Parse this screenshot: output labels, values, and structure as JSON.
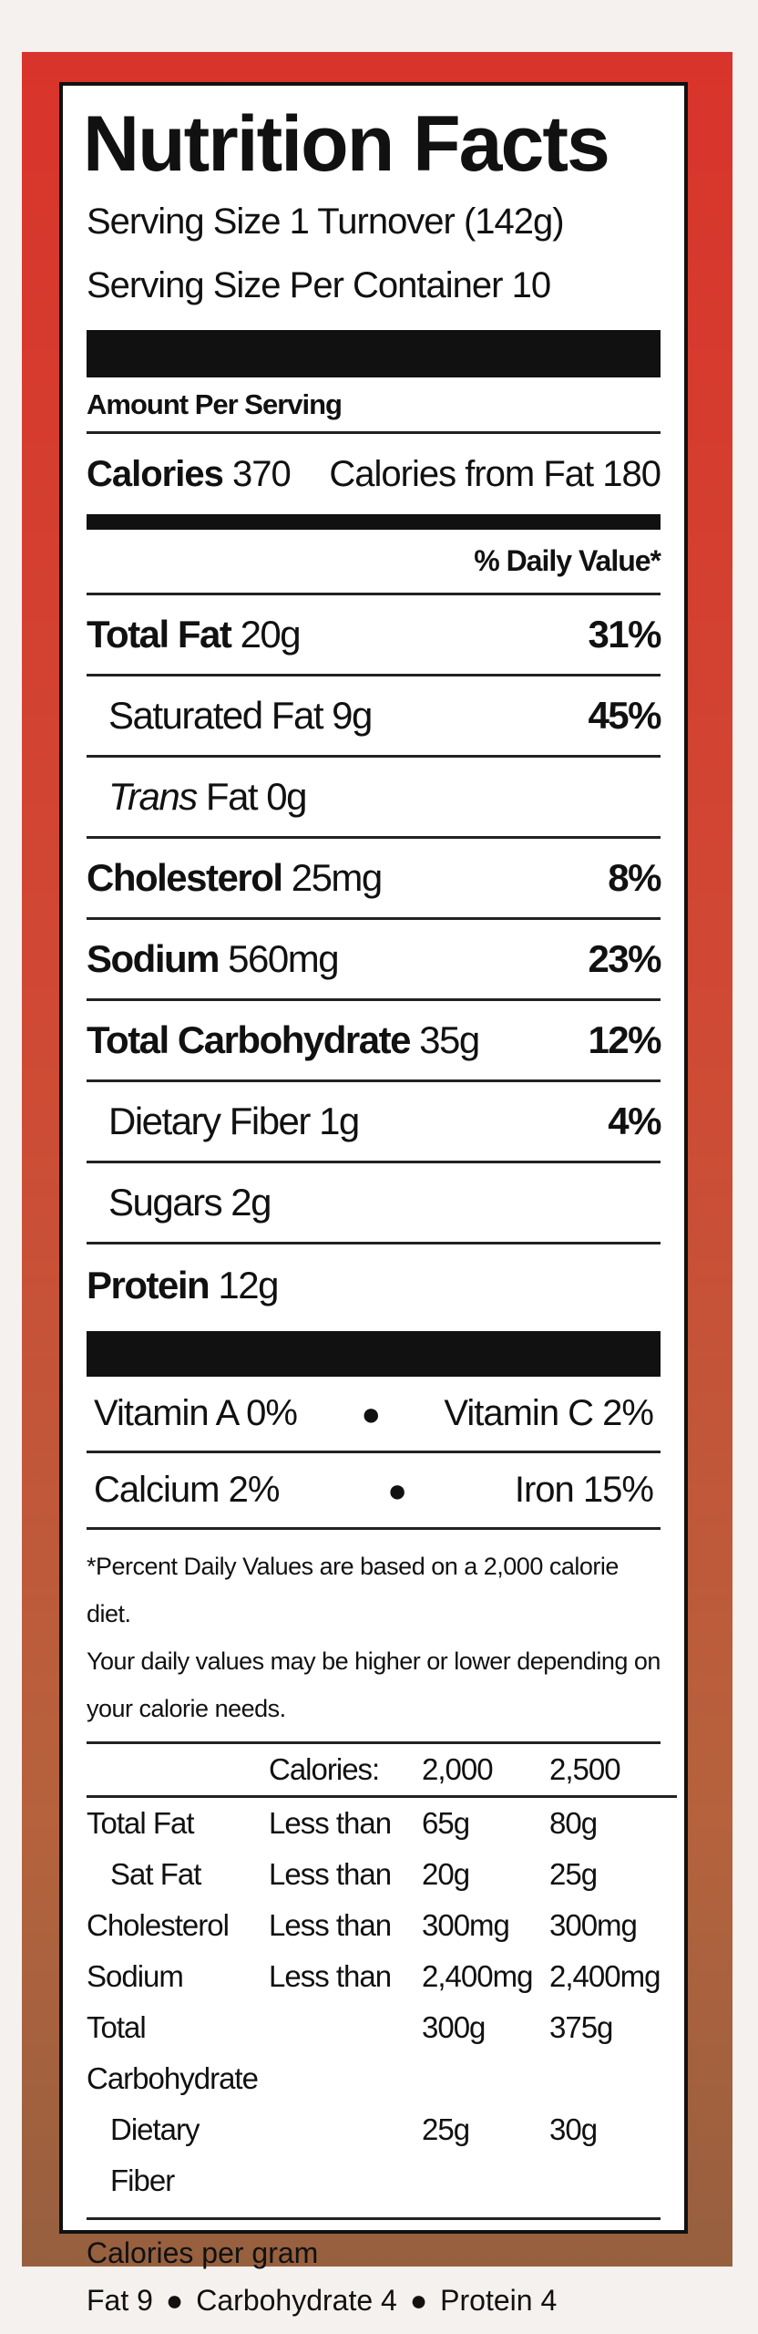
{
  "label": {
    "title": "Nutrition Facts",
    "serving_size": "Serving Size 1 Turnover (142g)",
    "servings_per_container": "Serving Size Per Container 10",
    "amount_per_serving": "Amount Per Serving",
    "calories": {
      "label": "Calories",
      "value": "370"
    },
    "calories_from_fat": "Calories from Fat 180",
    "daily_value_header": "% Daily Value*",
    "nutrients": [
      {
        "name": "Total Fat",
        "amount": "20g",
        "daily_value": "31%"
      },
      {
        "name": "Saturated Fat",
        "amount": "9g",
        "daily_value": "45%"
      },
      {
        "name_italic": "Trans",
        "name": "Fat",
        "amount": "0g"
      },
      {
        "name": "Cholesterol",
        "amount": "25mg",
        "daily_value": "8%"
      },
      {
        "name": "Sodium",
        "amount": "560mg",
        "daily_value": "23%"
      },
      {
        "name": "Total Carbohydrate",
        "amount": "35g",
        "daily_value": "12%"
      },
      {
        "name": "Dietary Fiber",
        "amount": "1g",
        "daily_value": "4%"
      },
      {
        "name": "Sugars",
        "amount": "2g"
      },
      {
        "name": "Protein",
        "amount": "12g"
      }
    ],
    "vitamins": [
      [
        "Vitamin A 0%",
        "Vitamin C 2%"
      ],
      [
        "Calcium 2%",
        "Iron 15%"
      ]
    ],
    "footnote": [
      "*Percent Daily Values are based on a 2,000 calorie diet.",
      "Your daily values may be higher or lower depending on",
      "your calorie needs."
    ],
    "reference_table": {
      "header": [
        "Calories:",
        "2,000",
        "2,500"
      ],
      "rows": [
        {
          "nutrient": "Total Fat",
          "limit": "Less than",
          "values": [
            "65g",
            "80g"
          ]
        },
        {
          "nutrient": "Sat Fat",
          "limit": "Less than",
          "values": [
            "20g",
            "25g"
          ]
        },
        {
          "nutrient": "Cholesterol",
          "limit": "Less than",
          "values": [
            "300mg",
            "300mg"
          ]
        },
        {
          "nutrient": "Sodium",
          "limit": "Less than",
          "values": [
            "2,400mg",
            "2,400mg"
          ]
        },
        {
          "nutrient": "Total Carbohydrate",
          "values": [
            "300g",
            "375g"
          ]
        },
        {
          "nutrient": "Dietary Fiber",
          "values": [
            "25g",
            "30g"
          ]
        }
      ]
    },
    "calories_per_gram": {
      "label": "Calories per gram",
      "items": [
        "Fat 9",
        "Carbohydrate 4",
        "Protein 4"
      ]
    }
  }
}
